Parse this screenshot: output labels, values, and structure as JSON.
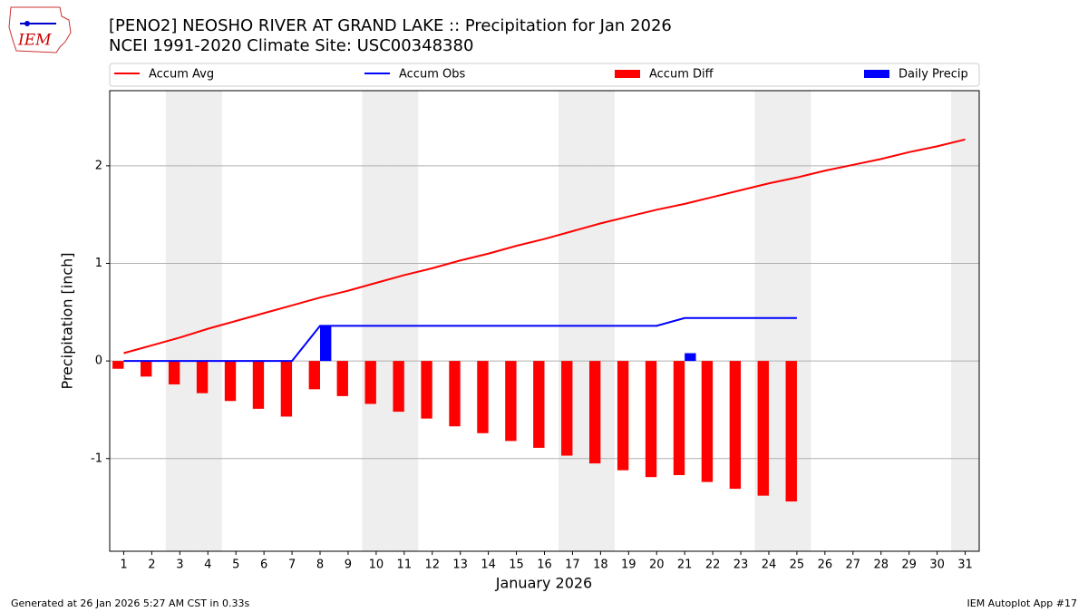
{
  "chart_data": {
    "type": "bar",
    "title": "[PENO2] NEOSHO RIVER  AT GRAND LAKE :: Precipitation for Jan 2026",
    "subtitle": "NCEI 1991-2020 Climate Site: USC00348380",
    "logo_text": "IEM",
    "xlabel": "January 2026",
    "ylabel": "Precipitation [inch]",
    "footer_left": "Generated at 26 Jan 2026 5:27 AM CST in 0.33s",
    "footer_right": "IEM Autoplot App #17",
    "x": [
      1,
      2,
      3,
      4,
      5,
      6,
      7,
      8,
      9,
      10,
      11,
      12,
      13,
      14,
      15,
      16,
      17,
      18,
      19,
      20,
      21,
      22,
      23,
      24,
      25,
      26,
      27,
      28,
      29,
      30,
      31
    ],
    "series": [
      {
        "name": "Accum Avg",
        "type": "line",
        "color": "#ff0000",
        "values": [
          0.08,
          0.16,
          0.24,
          0.33,
          0.41,
          0.49,
          0.57,
          0.65,
          0.72,
          0.8,
          0.88,
          0.95,
          1.03,
          1.1,
          1.18,
          1.25,
          1.33,
          1.41,
          1.48,
          1.55,
          1.61,
          1.68,
          1.75,
          1.82,
          1.88,
          1.95,
          2.01,
          2.07,
          2.14,
          2.2,
          2.27
        ]
      },
      {
        "name": "Accum Obs",
        "type": "line",
        "color": "#0000ff",
        "values": [
          0,
          0,
          0,
          0,
          0,
          0,
          0,
          0.36,
          0.36,
          0.36,
          0.36,
          0.36,
          0.36,
          0.36,
          0.36,
          0.36,
          0.36,
          0.36,
          0.36,
          0.36,
          0.44,
          0.44,
          0.44,
          0.44,
          0.44,
          null,
          null,
          null,
          null,
          null,
          null
        ]
      },
      {
        "name": "Accum Diff",
        "type": "bar",
        "color": "#ff0000",
        "values": [
          -0.08,
          -0.16,
          -0.24,
          -0.33,
          -0.41,
          -0.49,
          -0.57,
          -0.29,
          -0.36,
          -0.44,
          -0.52,
          -0.59,
          -0.67,
          -0.74,
          -0.82,
          -0.89,
          -0.97,
          -1.05,
          -1.12,
          -1.19,
          -1.17,
          -1.24,
          -1.31,
          -1.38,
          -1.44,
          null,
          null,
          null,
          null,
          null,
          null
        ]
      },
      {
        "name": "Daily Precip",
        "type": "bar",
        "color": "#0000ff",
        "values": [
          0,
          0,
          0,
          0,
          0,
          0,
          0,
          0.36,
          0,
          0,
          0,
          0,
          0,
          0,
          0,
          0,
          0,
          0,
          0,
          0,
          0.08,
          0,
          0,
          0,
          0,
          null,
          null,
          null,
          null,
          null,
          null
        ]
      }
    ],
    "shaded_days": [
      3,
      4,
      10,
      11,
      17,
      18,
      24,
      25,
      31
    ],
    "xlim": [
      0.5,
      31.5
    ],
    "ylim": [
      -1.95,
      2.77
    ],
    "xticks": [
      1,
      2,
      3,
      4,
      5,
      6,
      7,
      8,
      9,
      10,
      11,
      12,
      13,
      14,
      15,
      16,
      17,
      18,
      19,
      20,
      21,
      22,
      23,
      24,
      25,
      26,
      27,
      28,
      29,
      30,
      31
    ],
    "yticks": [
      -1,
      0,
      1,
      2
    ],
    "grid": true
  }
}
